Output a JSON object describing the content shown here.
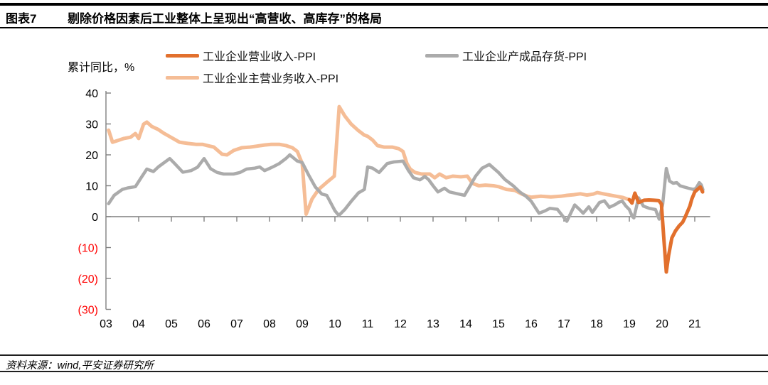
{
  "header": {
    "tag": "图表7",
    "title": "剔除价格因素后工业整体上呈现出“高营收、高库存”的格局"
  },
  "footer": {
    "source": "资料来源：wind,平安证券研究所"
  },
  "chart_data": {
    "type": "line",
    "title": "剔除价格因素后工业整体上呈现出“高营收、高库存”的格局",
    "ylabel": "累计同比，%",
    "xlabel": "",
    "ylim": [
      -30,
      40
    ],
    "grid": false,
    "legend_position": "top",
    "axis_color": "#7f7f7f",
    "negative_label_color": "#ff0000",
    "y_ticks": [
      40,
      30,
      20,
      10,
      0,
      -10,
      -20,
      -30
    ],
    "y_tick_labels": [
      "40",
      "30",
      "20",
      "10",
      "0",
      "(10)",
      "(20)",
      "(30)"
    ],
    "x_tick_labels": [
      "03",
      "04",
      "05",
      "06",
      "07",
      "08",
      "09",
      "10",
      "11",
      "12",
      "13",
      "14",
      "15",
      "16",
      "17",
      "18",
      "19",
      "20",
      "21"
    ],
    "x_range": [
      2003,
      2021.45
    ],
    "series": [
      {
        "key": "revenue",
        "name": "工业企业营业收入-PPI",
        "color": "#e2702d",
        "points": [
          [
            2019.0,
            5.5
          ],
          [
            2019.08,
            4.4
          ],
          [
            2019.17,
            7.6
          ],
          [
            2019.28,
            4.6
          ],
          [
            2019.45,
            5.3
          ],
          [
            2019.6,
            5.4
          ],
          [
            2019.75,
            5.3
          ],
          [
            2019.9,
            5.2
          ],
          [
            2019.98,
            4.1
          ],
          [
            2020.06,
            -8.0
          ],
          [
            2020.13,
            -17.9
          ],
          [
            2020.2,
            -12.6
          ],
          [
            2020.3,
            -6.9
          ],
          [
            2020.41,
            -4.6
          ],
          [
            2020.52,
            -3.0
          ],
          [
            2020.63,
            -1.8
          ],
          [
            2020.7,
            -0.3
          ],
          [
            2020.85,
            3.4
          ],
          [
            2020.91,
            5.7
          ],
          [
            2021.0,
            8.0
          ],
          [
            2021.07,
            8.7
          ],
          [
            2021.17,
            9.6
          ],
          [
            2021.24,
            8.0
          ]
        ]
      },
      {
        "key": "main_revenue",
        "name": "工业企业主营业务收入-PPI",
        "color": "#f5bd96",
        "points": [
          [
            2003.08,
            28.0
          ],
          [
            2003.2,
            24.1
          ],
          [
            2003.35,
            24.6
          ],
          [
            2003.55,
            25.3
          ],
          [
            2003.75,
            25.7
          ],
          [
            2003.9,
            26.9
          ],
          [
            2004.0,
            25.3
          ],
          [
            2004.15,
            29.9
          ],
          [
            2004.25,
            30.6
          ],
          [
            2004.4,
            29.2
          ],
          [
            2004.6,
            28.2
          ],
          [
            2004.75,
            27.1
          ],
          [
            2004.9,
            26.2
          ],
          [
            2005.05,
            25.3
          ],
          [
            2005.25,
            24.1
          ],
          [
            2005.5,
            23.7
          ],
          [
            2005.75,
            23.4
          ],
          [
            2005.95,
            23.4
          ],
          [
            2006.1,
            23.0
          ],
          [
            2006.3,
            22.5
          ],
          [
            2006.55,
            20.2
          ],
          [
            2006.7,
            20.0
          ],
          [
            2006.9,
            21.4
          ],
          [
            2007.15,
            22.3
          ],
          [
            2007.4,
            22.5
          ],
          [
            2007.6,
            22.8
          ],
          [
            2007.85,
            23.2
          ],
          [
            2008.05,
            23.4
          ],
          [
            2008.3,
            23.4
          ],
          [
            2008.5,
            23.0
          ],
          [
            2008.7,
            22.3
          ],
          [
            2008.85,
            21.1
          ],
          [
            2009.0,
            17.2
          ],
          [
            2009.12,
            0.8
          ],
          [
            2009.3,
            5.7
          ],
          [
            2009.5,
            8.8
          ],
          [
            2009.75,
            11.1
          ],
          [
            2009.98,
            13.1
          ],
          [
            2010.13,
            35.6
          ],
          [
            2010.3,
            32.6
          ],
          [
            2010.5,
            29.9
          ],
          [
            2010.7,
            28.0
          ],
          [
            2010.9,
            26.4
          ],
          [
            2011.0,
            26.0
          ],
          [
            2011.15,
            24.8
          ],
          [
            2011.3,
            23.0
          ],
          [
            2011.5,
            22.5
          ],
          [
            2011.75,
            22.5
          ],
          [
            2011.95,
            22.0
          ],
          [
            2012.08,
            21.1
          ],
          [
            2012.2,
            17.2
          ],
          [
            2012.3,
            15.4
          ],
          [
            2012.45,
            14.3
          ],
          [
            2012.65,
            13.8
          ],
          [
            2012.9,
            13.8
          ],
          [
            2013.05,
            12.6
          ],
          [
            2013.2,
            13.8
          ],
          [
            2013.4,
            12.6
          ],
          [
            2013.6,
            13.1
          ],
          [
            2013.85,
            12.9
          ],
          [
            2014.05,
            13.1
          ],
          [
            2014.2,
            10.8
          ],
          [
            2014.4,
            10.0
          ],
          [
            2014.6,
            10.2
          ],
          [
            2014.85,
            10.0
          ],
          [
            2015.0,
            9.7
          ],
          [
            2015.25,
            8.8
          ],
          [
            2015.5,
            8.5
          ],
          [
            2015.7,
            7.4
          ],
          [
            2015.9,
            6.5
          ],
          [
            2016.0,
            6.3
          ],
          [
            2016.3,
            6.6
          ],
          [
            2016.6,
            6.4
          ],
          [
            2016.9,
            6.6
          ],
          [
            2017.1,
            6.9
          ],
          [
            2017.3,
            7.1
          ],
          [
            2017.5,
            7.4
          ],
          [
            2017.7,
            7.0
          ],
          [
            2017.9,
            7.3
          ],
          [
            2018.02,
            7.8
          ],
          [
            2018.2,
            7.4
          ],
          [
            2018.4,
            7.0
          ],
          [
            2018.6,
            6.6
          ],
          [
            2018.8,
            6.2
          ],
          [
            2019.0,
            5.5
          ]
        ]
      },
      {
        "key": "inventory",
        "name": "工业企业产成品存货-PPI",
        "color": "#ababab",
        "points": [
          [
            2003.08,
            4.2
          ],
          [
            2003.25,
            6.9
          ],
          [
            2003.5,
            8.8
          ],
          [
            2003.67,
            9.3
          ],
          [
            2003.9,
            9.7
          ],
          [
            2004.1,
            13.0
          ],
          [
            2004.25,
            15.4
          ],
          [
            2004.45,
            14.6
          ],
          [
            2004.6,
            16.1
          ],
          [
            2004.95,
            18.8
          ],
          [
            2005.1,
            17.2
          ],
          [
            2005.35,
            14.4
          ],
          [
            2005.6,
            14.9
          ],
          [
            2005.8,
            16.0
          ],
          [
            2006.0,
            18.8
          ],
          [
            2006.2,
            15.5
          ],
          [
            2006.4,
            14.3
          ],
          [
            2006.6,
            13.8
          ],
          [
            2006.9,
            13.8
          ],
          [
            2007.1,
            14.3
          ],
          [
            2007.3,
            15.4
          ],
          [
            2007.55,
            15.7
          ],
          [
            2007.7,
            16.1
          ],
          [
            2007.85,
            14.9
          ],
          [
            2008.1,
            16.1
          ],
          [
            2008.3,
            17.2
          ],
          [
            2008.5,
            18.8
          ],
          [
            2008.62,
            20.0
          ],
          [
            2008.85,
            18.0
          ],
          [
            2009.0,
            17.5
          ],
          [
            2009.2,
            13.4
          ],
          [
            2009.4,
            9.6
          ],
          [
            2009.6,
            7.3
          ],
          [
            2009.75,
            6.9
          ],
          [
            2009.9,
            3.9
          ],
          [
            2010.0,
            1.9
          ],
          [
            2010.12,
            0.4
          ],
          [
            2010.3,
            2.3
          ],
          [
            2010.5,
            5.0
          ],
          [
            2010.72,
            7.7
          ],
          [
            2010.9,
            8.8
          ],
          [
            2011.0,
            16.1
          ],
          [
            2011.15,
            15.7
          ],
          [
            2011.35,
            14.3
          ],
          [
            2011.6,
            17.2
          ],
          [
            2011.8,
            17.7
          ],
          [
            2012.08,
            18.0
          ],
          [
            2012.25,
            14.9
          ],
          [
            2012.4,
            12.6
          ],
          [
            2012.6,
            11.9
          ],
          [
            2012.75,
            13.0
          ],
          [
            2012.87,
            11.9
          ],
          [
            2013.0,
            10.0
          ],
          [
            2013.15,
            8.0
          ],
          [
            2013.35,
            9.2
          ],
          [
            2013.5,
            8.0
          ],
          [
            2013.75,
            7.4
          ],
          [
            2013.96,
            6.9
          ],
          [
            2014.15,
            10.3
          ],
          [
            2014.3,
            13.1
          ],
          [
            2014.5,
            15.7
          ],
          [
            2014.72,
            16.9
          ],
          [
            2015.0,
            14.3
          ],
          [
            2015.2,
            12.0
          ],
          [
            2015.45,
            10.0
          ],
          [
            2015.65,
            8.0
          ],
          [
            2015.85,
            6.5
          ],
          [
            2016.0,
            5.0
          ],
          [
            2016.24,
            1.1
          ],
          [
            2016.43,
            1.9
          ],
          [
            2016.57,
            2.7
          ],
          [
            2016.8,
            2.4
          ],
          [
            2017.09,
            -1.5
          ],
          [
            2017.33,
            3.8
          ],
          [
            2017.48,
            2.3
          ],
          [
            2017.59,
            1.1
          ],
          [
            2017.76,
            3.2
          ],
          [
            2017.87,
            1.4
          ],
          [
            2018.09,
            4.6
          ],
          [
            2018.24,
            5.1
          ],
          [
            2018.39,
            3.0
          ],
          [
            2018.57,
            3.9
          ],
          [
            2018.67,
            4.6
          ],
          [
            2018.78,
            5.1
          ],
          [
            2018.89,
            3.5
          ],
          [
            2019.0,
            2.3
          ],
          [
            2019.09,
            0.1
          ],
          [
            2019.14,
            -0.4
          ],
          [
            2019.28,
            6.1
          ],
          [
            2019.43,
            3.4
          ],
          [
            2019.61,
            2.7
          ],
          [
            2019.8,
            2.3
          ],
          [
            2019.91,
            -0.8
          ],
          [
            2020.02,
            4.0
          ],
          [
            2020.13,
            15.6
          ],
          [
            2020.23,
            11.5
          ],
          [
            2020.34,
            10.8
          ],
          [
            2020.45,
            11.0
          ],
          [
            2020.55,
            10.0
          ],
          [
            2020.67,
            9.6
          ],
          [
            2020.81,
            9.2
          ],
          [
            2020.96,
            8.8
          ],
          [
            2021.04,
            9.2
          ],
          [
            2021.14,
            11.0
          ],
          [
            2021.2,
            10.3
          ],
          [
            2021.25,
            8.7
          ]
        ]
      }
    ]
  }
}
